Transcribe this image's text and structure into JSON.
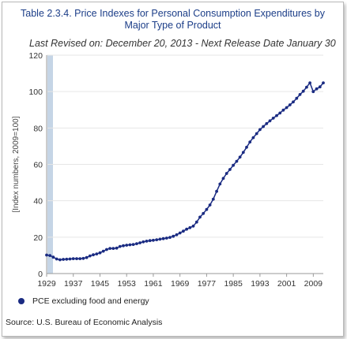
{
  "title_line1": "Table 2.3.4. Price Indexes for Personal Consumption Expenditures by",
  "title_line2": "Major Type of Product",
  "subtitle": "Last Revised on: December 20, 2013 - Next Release Date January 30",
  "legend_label": "PCE excluding food and energy",
  "source": "Source: U.S. Bureau of Economic Analysis",
  "colors": {
    "series": "#1a2b82",
    "title": "#1c3e88",
    "highlight_band": "#c5d5e6",
    "grid": "#e6e6e6"
  },
  "chart_data": {
    "type": "line",
    "title": "Table 2.3.4. Price Indexes for Personal Consumption Expenditures by Major Type of Product",
    "subtitle": "Last Revised on: December 20, 2013 - Next Release Date January 30",
    "ylabel": "[Index numbers, 2009=100]",
    "xlabel": "",
    "ylim": [
      0,
      120
    ],
    "xlim": [
      1929,
      2012
    ],
    "y_ticks": [
      0,
      20,
      40,
      60,
      80,
      100,
      120
    ],
    "x_ticks": [
      1929,
      1937,
      1945,
      1953,
      1961,
      1969,
      1977,
      1985,
      1993,
      2001,
      2009
    ],
    "grid": true,
    "legend_position": "bottom-left",
    "series": [
      {
        "name": "PCE excluding food and energy",
        "x": [
          1929,
          1930,
          1931,
          1932,
          1933,
          1934,
          1935,
          1936,
          1937,
          1938,
          1939,
          1940,
          1941,
          1942,
          1943,
          1944,
          1945,
          1946,
          1947,
          1948,
          1949,
          1950,
          1951,
          1952,
          1953,
          1954,
          1955,
          1956,
          1957,
          1958,
          1959,
          1960,
          1961,
          1962,
          1963,
          1964,
          1965,
          1966,
          1967,
          1968,
          1969,
          1970,
          1971,
          1972,
          1973,
          1974,
          1975,
          1976,
          1977,
          1978,
          1979,
          1980,
          1981,
          1982,
          1983,
          1984,
          1985,
          1986,
          1987,
          1988,
          1989,
          1990,
          1991,
          1992,
          1993,
          1994,
          1995,
          1996,
          1997,
          1998,
          1999,
          2000,
          2001,
          2002,
          2003,
          2004,
          2005,
          2006,
          2007,
          2008,
          2009,
          2010,
          2011,
          2012
        ],
        "y": [
          10.2,
          9.9,
          9.0,
          8.0,
          7.6,
          7.8,
          7.9,
          8.0,
          8.2,
          8.2,
          8.2,
          8.3,
          8.8,
          9.7,
          10.3,
          10.8,
          11.4,
          12.3,
          13.2,
          13.8,
          13.8,
          14.0,
          14.9,
          15.3,
          15.6,
          15.8,
          16.0,
          16.4,
          16.9,
          17.4,
          17.8,
          18.1,
          18.3,
          18.6,
          18.9,
          19.2,
          19.5,
          19.9,
          20.5,
          21.3,
          22.3,
          23.3,
          24.4,
          25.2,
          26.1,
          28.3,
          31.0,
          33.0,
          35.2,
          37.7,
          40.9,
          45.2,
          49.2,
          52.3,
          55.0,
          57.2,
          59.5,
          61.7,
          64.0,
          66.6,
          69.4,
          72.3,
          74.7,
          76.9,
          79.1,
          80.8,
          82.4,
          83.9,
          85.4,
          86.8,
          88.2,
          89.8,
          91.2,
          92.7,
          94.3,
          96.3,
          98.4,
          100.2,
          102.4,
          104.8,
          100.0,
          101.5,
          102.6,
          104.8
        ]
      }
    ]
  }
}
